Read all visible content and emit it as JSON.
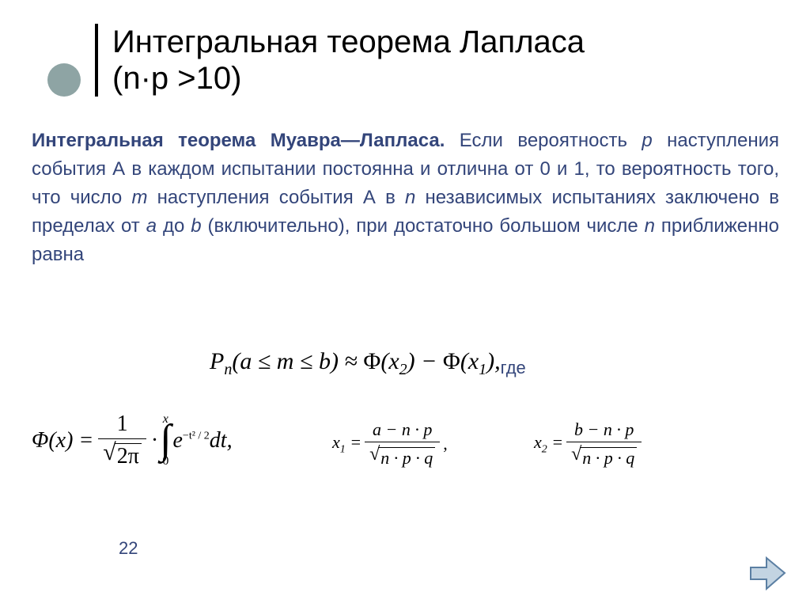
{
  "title": {
    "line1": "Интегральная теорема Лапласа",
    "line2": "(n·p >10)"
  },
  "paragraph": {
    "lead": "Интегральная теорема Муавра—Лапласа.",
    "text": " Если вероятность <span class=\"ital\">p</span> наступления события А в каждом испытании постоянна и отлична от 0 и 1, то вероятность того, что число <span class=\"ital\">m</span> наступления события А в <span class=\"ital\">n</span> независимых испытаниях заключено в пределах от <span class=\"ital\">a</span> до <span class=\"ital\">b</span> (включительно), при достаточно большом числе <span class=\"ital\">n</span> приближенно равна"
  },
  "formula_main": {
    "P": "P",
    "n": "n",
    "a": "a",
    "m": "m",
    "b": "b",
    "Phi": "Φ",
    "x2": "x",
    "x2sub": "2",
    "x1": "x",
    "x1sub": "1",
    "gde": "где"
  },
  "phi": {
    "lhs": "Φ(x) =",
    "num": "1",
    "den_inner": "2π",
    "dot": "·",
    "int_upper": "x",
    "int_lower": "0",
    "e": "e",
    "exp_sup": "−t² / 2",
    "dt": "dt,"
  },
  "x1": {
    "label_var": "x",
    "label_sub": "1",
    "num": "a − n · p",
    "den_inner": "n · p · q",
    "trail": " ,"
  },
  "x2": {
    "label_var": "x",
    "label_sub": "2",
    "num": "b − n · p",
    "den_inner": "n · p · q"
  },
  "page_number": "22",
  "colors": {
    "bullet": "#8ea4a4",
    "body_text": "#33457a",
    "arrow_fill": "#c3d4e2",
    "arrow_stroke": "#5b7fa3"
  }
}
